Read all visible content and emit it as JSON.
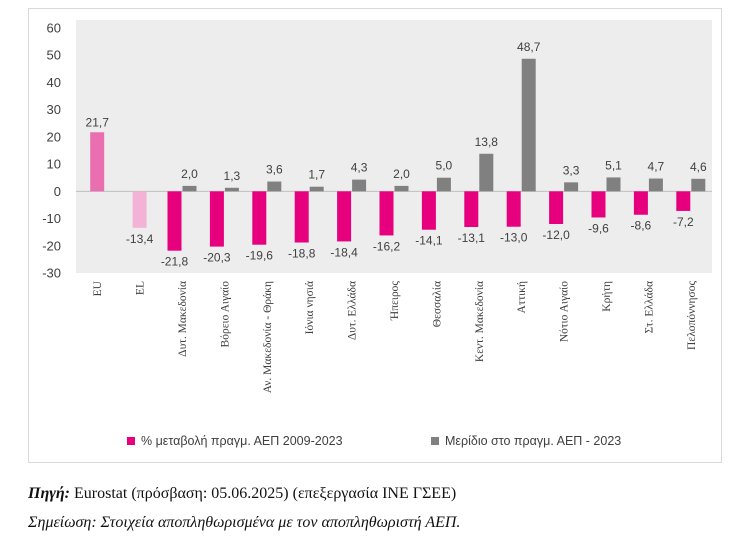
{
  "chart_data": {
    "type": "bar",
    "categories": [
      "EU",
      "EL",
      "Δυτ. Μακεδονία",
      "Βόρειο Αιγαίο",
      "Αν. Μακεδονία - Θράκη",
      "Ιόνια νησιά",
      "Δυτ. Ελλάδα",
      "Ήπειρος",
      "Θεσσαλία",
      "Κεντ. Μακεδονία",
      "Αττική",
      "Νότιο Αιγαίο",
      "Κρήτη",
      "Στ. Ελλάδα",
      "Πελοπόννησος"
    ],
    "series": [
      {
        "name": "% μεταβολή πραγμ. ΑΕΠ 2009-2023",
        "values": [
          21.7,
          -13.4,
          -21.8,
          -20.3,
          -19.6,
          -18.8,
          -18.4,
          -16.2,
          -14.1,
          -13.1,
          -13.0,
          -12.0,
          -9.6,
          -8.6,
          -7.2
        ],
        "labels": [
          "21,7",
          "-13,4",
          "-21,8",
          "-20,3",
          "-19,6",
          "-18,8",
          "-18,4",
          "-16,2",
          "-14,1",
          "-13,1",
          "-13,0",
          "-12,0",
          "-9,6",
          "-8,6",
          "-7,2"
        ],
        "color": "#e6007e"
      },
      {
        "name": "Μερίδιο στο πραγμ. ΑΕΠ - 2023",
        "values": [
          null,
          null,
          2.0,
          1.3,
          3.6,
          1.7,
          4.3,
          2.0,
          5.0,
          13.8,
          48.7,
          3.3,
          5.1,
          4.7,
          4.6
        ],
        "labels": [
          "",
          "",
          "2,0",
          "1,3",
          "3,6",
          "1,7",
          "4,3",
          "2,0",
          "5,0",
          "13,8",
          "48,7",
          "3,3",
          "5,1",
          "4,7",
          "4,6"
        ],
        "color": "#808080"
      }
    ],
    "special_colors": {
      "EU": "#ea6fb0",
      "EL": "#f2b3d6"
    },
    "ylim": [
      -30,
      60
    ],
    "yticks": [
      -30,
      -20,
      -10,
      0,
      10,
      20,
      30,
      40,
      50,
      60
    ],
    "grid": false,
    "legend_position": "bottom"
  },
  "source": {
    "label": "Πηγή:",
    "text": " Eurostat (πρόσβαση: 05.06.2025) (επεξεργασία ΙΝΕ ΓΣΕΕ)"
  },
  "note": {
    "text": "Σημείωση: Στοιχεία αποπληθωρισμένα με τον αποπληθωριστή ΑΕΠ."
  }
}
